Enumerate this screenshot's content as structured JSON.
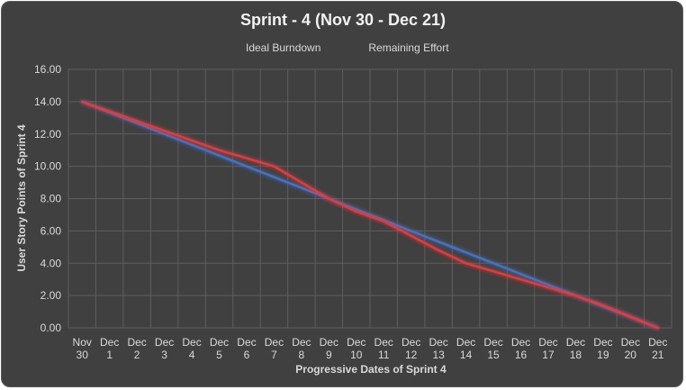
{
  "chart_data": {
    "type": "line",
    "title": "Sprint - 4 (Nov 30 - Dec 21)",
    "xlabel": "Progressive Dates of Sprint 4",
    "ylabel": "User Story Points of Sprint 4",
    "ylim": [
      0,
      16
    ],
    "yticks": [
      "0.00",
      "2.00",
      "4.00",
      "6.00",
      "8.00",
      "10.00",
      "12.00",
      "14.00",
      "16.00"
    ],
    "categories": [
      [
        "Nov",
        "30"
      ],
      [
        "Dec",
        "1"
      ],
      [
        "Dec",
        "2"
      ],
      [
        "Dec",
        "3"
      ],
      [
        "Dec",
        "4"
      ],
      [
        "Dec",
        "5"
      ],
      [
        "Dec",
        "6"
      ],
      [
        "Dec",
        "7"
      ],
      [
        "Dec",
        "8"
      ],
      [
        "Dec",
        "9"
      ],
      [
        "Dec",
        "10"
      ],
      [
        "Dec",
        "11"
      ],
      [
        "Dec",
        "12"
      ],
      [
        "Dec",
        "13"
      ],
      [
        "Dec",
        "14"
      ],
      [
        "Dec",
        "15"
      ],
      [
        "Dec",
        "16"
      ],
      [
        "Dec",
        "17"
      ],
      [
        "Dec",
        "18"
      ],
      [
        "Dec",
        "19"
      ],
      [
        "Dec",
        "20"
      ],
      [
        "Dec",
        "21"
      ]
    ],
    "grid": true,
    "legend": "top",
    "series": [
      {
        "name": "Ideal Burndown",
        "color": "#4472c4",
        "values": [
          14.0,
          13.33,
          12.67,
          12.0,
          11.33,
          10.67,
          10.0,
          9.33,
          8.67,
          8.0,
          7.33,
          6.67,
          6.0,
          5.33,
          4.67,
          4.0,
          3.33,
          2.67,
          2.0,
          1.33,
          0.67,
          0.0
        ]
      },
      {
        "name": "Remaining Effort",
        "color": "#e03a3e",
        "values": [
          14.0,
          13.4,
          12.8,
          12.2,
          11.6,
          11.0,
          10.5,
          10.0,
          9.0,
          8.0,
          7.2,
          6.6,
          5.7,
          4.8,
          4.0,
          3.5,
          3.0,
          2.5,
          2.0,
          1.4,
          0.7,
          0.0
        ]
      }
    ]
  }
}
